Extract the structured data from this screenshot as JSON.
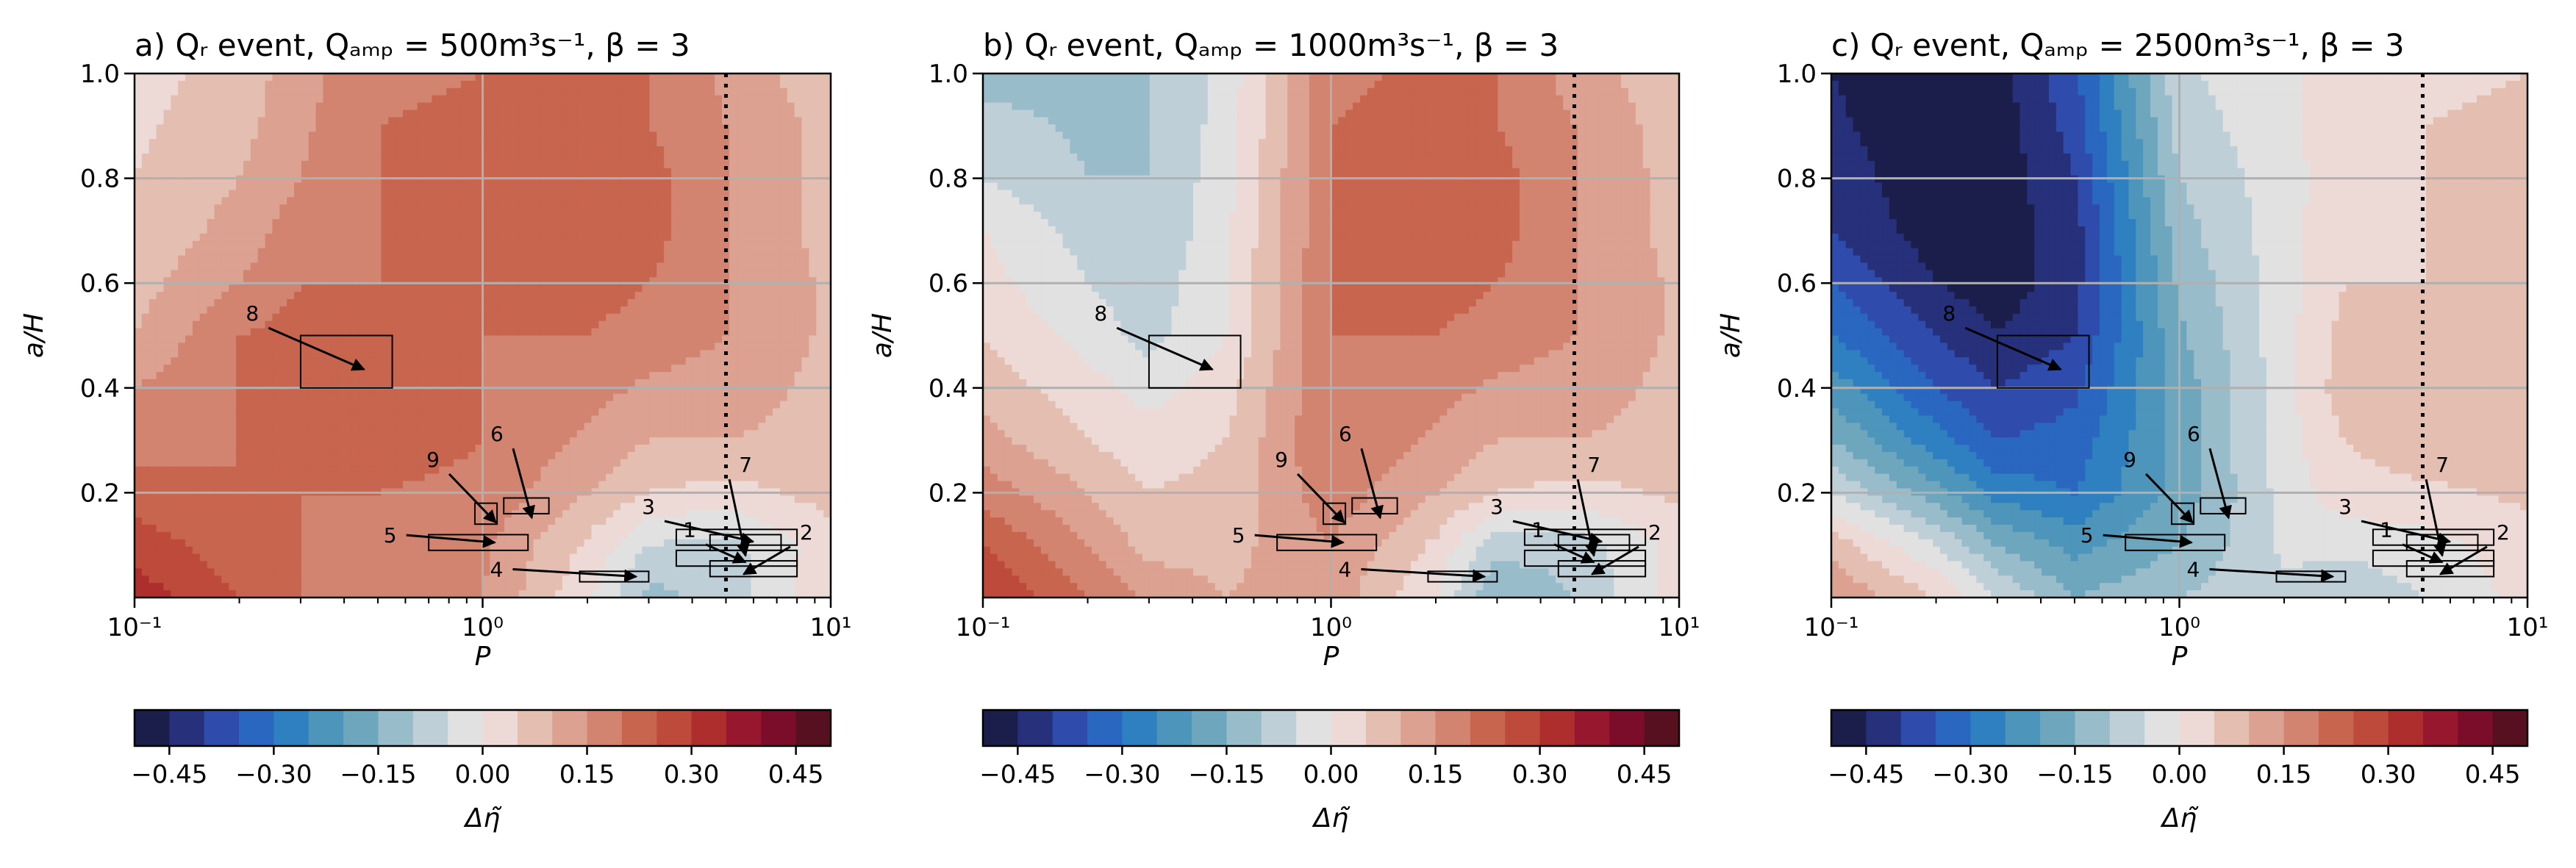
{
  "figure": {
    "colorbar_label": "Δη̃",
    "colormap": [
      "#1b1e4a",
      "#27307a",
      "#2f4cad",
      "#2a67c0",
      "#2f80c0",
      "#4e95bb",
      "#6ea7bd",
      "#99bccb",
      "#bfcfd7",
      "#e1e1e2",
      "#eddad6",
      "#e4bfb1",
      "#dca190",
      "#d28470",
      "#c8654f",
      "#bd4a3a",
      "#ae2e2e",
      "#96172e",
      "#7b0d2a",
      "#571020"
    ],
    "colorbar_range": [
      -0.5,
      0.5
    ],
    "panels": [
      {
        "title": "a) Qᵣ event, Qₐₘₚ = 500m³s⁻¹, β = 3"
      },
      {
        "title": "b) Qᵣ event, Qₐₘₚ = 1000m³s⁻¹, β = 3"
      },
      {
        "title": "c) Qᵣ event, Qₐₘₚ = 2500m³s⁻¹, β = 3"
      }
    ]
  },
  "chart_data": [
    {
      "type": "heatmap",
      "title": "a) Qᵣ event, Qₐₘₚ = 500m³s⁻¹, β = 3",
      "xlabel": "P",
      "ylabel": "a/H",
      "xscale": "log",
      "xlim": [
        0.1,
        10
      ],
      "ylim": [
        0.0,
        1.0
      ],
      "xticks": [
        "10⁻¹",
        "10⁰",
        "10¹"
      ],
      "yticks": [
        "0.2",
        "0.4",
        "0.6",
        "0.8",
        "1.0"
      ],
      "grid": true,
      "vline_x": 5,
      "colorbar": {
        "label": "Δη̃",
        "ticks": [
          "−0.45",
          "−0.30",
          "−0.15",
          "0.00",
          "0.15",
          "0.30",
          "0.45"
        ],
        "range": [
          -0.5,
          0.5
        ],
        "levels": 20
      },
      "x": [
        0.1,
        0.2,
        0.3,
        0.5,
        1.0,
        2.0,
        3.0,
        5.0,
        10.0
      ],
      "y": [
        0.0,
        0.1,
        0.2,
        0.3,
        0.4,
        0.5,
        0.6,
        0.7,
        0.8,
        0.9,
        1.0
      ],
      "z": [
        [
          0.33,
          0.25,
          0.2,
          0.17,
          0.15,
          0.01,
          -0.12,
          -0.08,
          0.05
        ],
        [
          0.28,
          0.22,
          0.2,
          0.18,
          0.16,
          0.04,
          -0.05,
          -0.07,
          0.03
        ],
        [
          0.22,
          0.2,
          0.2,
          0.2,
          0.19,
          0.1,
          0.05,
          0.03,
          0.07
        ],
        [
          0.18,
          0.2,
          0.22,
          0.22,
          0.2,
          0.14,
          0.1,
          0.1,
          0.08
        ],
        [
          0.15,
          0.2,
          0.22,
          0.22,
          0.2,
          0.17,
          0.14,
          0.13,
          0.08
        ],
        [
          0.1,
          0.2,
          0.22,
          0.21,
          0.2,
          0.2,
          0.18,
          0.15,
          0.09
        ],
        [
          0.08,
          0.15,
          0.2,
          0.2,
          0.2,
          0.22,
          0.2,
          0.15,
          0.09
        ],
        [
          0.06,
          0.12,
          0.18,
          0.2,
          0.2,
          0.23,
          0.22,
          0.15,
          0.08
        ],
        [
          0.05,
          0.1,
          0.15,
          0.2,
          0.21,
          0.23,
          0.22,
          0.15,
          0.08
        ],
        [
          0.04,
          0.08,
          0.14,
          0.2,
          0.21,
          0.23,
          0.2,
          0.15,
          0.08
        ],
        [
          0.03,
          0.07,
          0.13,
          0.19,
          0.2,
          0.22,
          0.2,
          0.14,
          0.06
        ]
      ],
      "boxes": [
        {
          "label": "1",
          "x0": 3.6,
          "x1": 8.0,
          "y0": 0.06,
          "y1": 0.09
        },
        {
          "label": "2",
          "x0": 4.5,
          "x1": 8.0,
          "y0": 0.04,
          "y1": 0.07
        },
        {
          "label": "3",
          "x0": 3.6,
          "x1": 8.0,
          "y0": 0.1,
          "y1": 0.13
        },
        {
          "label": "4",
          "x0": 1.9,
          "x1": 3.0,
          "y0": 0.03,
          "y1": 0.05
        },
        {
          "label": "5",
          "x0": 0.7,
          "x1": 1.35,
          "y0": 0.09,
          "y1": 0.12
        },
        {
          "label": "6",
          "x0": 1.15,
          "x1": 1.55,
          "y0": 0.16,
          "y1": 0.19
        },
        {
          "label": "7",
          "x0": 4.5,
          "x1": 7.2,
          "y0": 0.09,
          "y1": 0.12
        },
        {
          "label": "8",
          "x0": 0.3,
          "x1": 0.55,
          "y0": 0.4,
          "y1": 0.5
        },
        {
          "label": "9",
          "x0": 0.95,
          "x1": 1.1,
          "y0": 0.14,
          "y1": 0.18
        }
      ]
    },
    {
      "type": "heatmap",
      "title": "b) Qᵣ event, Qₐₘₚ = 1000m³s⁻¹, β = 3",
      "xlabel": "P",
      "ylabel": "a/H",
      "xscale": "log",
      "xlim": [
        0.1,
        10
      ],
      "ylim": [
        0.0,
        1.0
      ],
      "xticks": [
        "10⁻¹",
        "10⁰",
        "10¹"
      ],
      "yticks": [
        "0.2",
        "0.4",
        "0.6",
        "0.8",
        "1.0"
      ],
      "grid": true,
      "vline_x": 5,
      "colorbar": {
        "label": "Δη̃",
        "ticks": [
          "−0.45",
          "−0.30",
          "−0.15",
          "0.00",
          "0.15",
          "0.30",
          "0.45"
        ],
        "range": [
          -0.5,
          0.5
        ],
        "levels": 20
      },
      "x": [
        0.1,
        0.2,
        0.3,
        0.5,
        1.0,
        2.0,
        3.0,
        5.0,
        10.0
      ],
      "y": [
        0.0,
        0.1,
        0.2,
        0.3,
        0.4,
        0.5,
        0.6,
        0.7,
        0.8,
        0.9,
        1.0
      ],
      "z": [
        [
          0.3,
          0.2,
          0.14,
          0.1,
          0.13,
          0.0,
          -0.15,
          -0.1,
          0.03
        ],
        [
          0.25,
          0.15,
          0.08,
          0.08,
          0.15,
          0.04,
          -0.08,
          -0.08,
          0.02
        ],
        [
          0.18,
          0.1,
          0.05,
          0.07,
          0.18,
          0.1,
          0.05,
          0.03,
          0.06
        ],
        [
          0.12,
          0.05,
          0.02,
          0.05,
          0.2,
          0.14,
          0.1,
          0.1,
          0.08
        ],
        [
          0.08,
          0.02,
          -0.02,
          0.03,
          0.2,
          0.17,
          0.14,
          0.13,
          0.08
        ],
        [
          0.05,
          -0.02,
          -0.07,
          0.0,
          0.2,
          0.2,
          0.18,
          0.15,
          0.09
        ],
        [
          0.02,
          -0.05,
          -0.08,
          0.0,
          0.2,
          0.22,
          0.2,
          0.15,
          0.09
        ],
        [
          0.0,
          -0.07,
          -0.1,
          -0.01,
          0.2,
          0.22,
          0.22,
          0.15,
          0.08
        ],
        [
          -0.05,
          -0.1,
          -0.1,
          -0.02,
          0.2,
          0.22,
          0.22,
          0.15,
          0.08
        ],
        [
          -0.08,
          -0.11,
          -0.1,
          -0.03,
          0.2,
          0.22,
          0.2,
          0.15,
          0.07
        ],
        [
          -0.12,
          -0.12,
          -0.1,
          -0.03,
          0.19,
          0.21,
          0.2,
          0.13,
          0.06
        ]
      ],
      "boxes": [
        {
          "label": "1",
          "x0": 3.6,
          "x1": 8.0,
          "y0": 0.06,
          "y1": 0.09
        },
        {
          "label": "2",
          "x0": 4.5,
          "x1": 8.0,
          "y0": 0.04,
          "y1": 0.07
        },
        {
          "label": "3",
          "x0": 3.6,
          "x1": 8.0,
          "y0": 0.1,
          "y1": 0.13
        },
        {
          "label": "4",
          "x0": 1.9,
          "x1": 3.0,
          "y0": 0.03,
          "y1": 0.05
        },
        {
          "label": "5",
          "x0": 0.7,
          "x1": 1.35,
          "y0": 0.09,
          "y1": 0.12
        },
        {
          "label": "6",
          "x0": 1.15,
          "x1": 1.55,
          "y0": 0.16,
          "y1": 0.19
        },
        {
          "label": "7",
          "x0": 4.5,
          "x1": 7.2,
          "y0": 0.09,
          "y1": 0.12
        },
        {
          "label": "8",
          "x0": 0.3,
          "x1": 0.55,
          "y0": 0.4,
          "y1": 0.5
        },
        {
          "label": "9",
          "x0": 0.95,
          "x1": 1.1,
          "y0": 0.14,
          "y1": 0.18
        }
      ]
    },
    {
      "type": "heatmap",
      "title": "c) Qᵣ event, Qₐₘₚ = 2500m³s⁻¹, β = 3",
      "xlabel": "P",
      "ylabel": "a/H",
      "xscale": "log",
      "xlim": [
        0.1,
        10
      ],
      "ylim": [
        0.0,
        1.0
      ],
      "xticks": [
        "10⁻¹",
        "10⁰",
        "10¹"
      ],
      "yticks": [
        "0.2",
        "0.4",
        "0.6",
        "0.8",
        "1.0"
      ],
      "grid": true,
      "vline_x": 5,
      "colorbar": {
        "label": "Δη̃",
        "ticks": [
          "−0.45",
          "−0.30",
          "−0.15",
          "0.00",
          "0.15",
          "0.30",
          "0.45"
        ],
        "range": [
          -0.5,
          0.5
        ],
        "levels": 20
      },
      "x": [
        0.1,
        0.2,
        0.3,
        0.5,
        1.0,
        2.0,
        3.0,
        5.0,
        10.0
      ],
      "y": [
        0.0,
        0.1,
        0.2,
        0.3,
        0.4,
        0.5,
        0.6,
        0.7,
        0.8,
        0.9,
        1.0
      ],
      "z": [
        [
          0.15,
          0.05,
          -0.05,
          -0.15,
          -0.1,
          -0.06,
          -0.1,
          -0.05,
          0.02
        ],
        [
          0.08,
          -0.05,
          -0.15,
          -0.22,
          -0.15,
          -0.04,
          -0.03,
          -0.02,
          0.03
        ],
        [
          -0.05,
          -0.18,
          -0.27,
          -0.3,
          -0.18,
          -0.03,
          0.03,
          0.04,
          0.06
        ],
        [
          -0.15,
          -0.28,
          -0.35,
          -0.33,
          -0.18,
          -0.02,
          0.05,
          0.08,
          0.07
        ],
        [
          -0.22,
          -0.35,
          -0.4,
          -0.36,
          -0.18,
          -0.02,
          0.08,
          0.1,
          0.08
        ],
        [
          -0.3,
          -0.4,
          -0.45,
          -0.4,
          -0.16,
          -0.02,
          0.07,
          0.07,
          0.08
        ],
        [
          -0.35,
          -0.45,
          -0.48,
          -0.42,
          -0.14,
          -0.02,
          0.05,
          0.05,
          0.08
        ],
        [
          -0.4,
          -0.48,
          -0.48,
          -0.42,
          -0.12,
          -0.02,
          0.04,
          0.05,
          0.08
        ],
        [
          -0.42,
          -0.49,
          -0.48,
          -0.4,
          -0.1,
          -0.02,
          0.03,
          0.05,
          0.07
        ],
        [
          -0.44,
          -0.49,
          -0.48,
          -0.38,
          -0.08,
          -0.01,
          0.03,
          0.05,
          0.06
        ],
        [
          -0.45,
          -0.49,
          -0.47,
          -0.36,
          -0.06,
          -0.01,
          0.02,
          0.04,
          0.05
        ]
      ],
      "boxes": [
        {
          "label": "1",
          "x0": 3.6,
          "x1": 8.0,
          "y0": 0.06,
          "y1": 0.09
        },
        {
          "label": "2",
          "x0": 4.5,
          "x1": 8.0,
          "y0": 0.04,
          "y1": 0.07
        },
        {
          "label": "3",
          "x0": 3.6,
          "x1": 8.0,
          "y0": 0.1,
          "y1": 0.13
        },
        {
          "label": "4",
          "x0": 1.9,
          "x1": 3.0,
          "y0": 0.03,
          "y1": 0.05
        },
        {
          "label": "5",
          "x0": 0.7,
          "x1": 1.35,
          "y0": 0.09,
          "y1": 0.12
        },
        {
          "label": "6",
          "x0": 1.15,
          "x1": 1.55,
          "y0": 0.16,
          "y1": 0.19
        },
        {
          "label": "7",
          "x0": 4.5,
          "x1": 7.2,
          "y0": 0.09,
          "y1": 0.12
        },
        {
          "label": "8",
          "x0": 0.3,
          "x1": 0.55,
          "y0": 0.4,
          "y1": 0.5
        },
        {
          "label": "9",
          "x0": 0.95,
          "x1": 1.1,
          "y0": 0.14,
          "y1": 0.18
        }
      ]
    }
  ]
}
